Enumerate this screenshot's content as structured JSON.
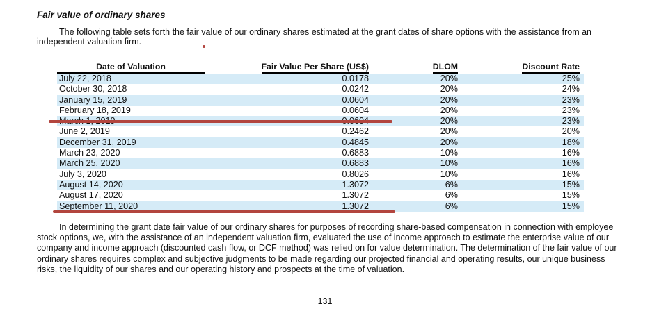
{
  "document": {
    "title": "Fair value of ordinary shares",
    "intro": "The following table sets forth the fair value of our ordinary shares estimated at the grant dates of share options with the assistance from an independent valuation firm.",
    "body": "In determining the grant date fair value of our ordinary shares for purposes of recording share-based compensation in connection with employee stock options, we, with the assistance of an independent valuation firm, evaluated the use of income approach to estimate the enterprise value of our company and income approach (discounted cash flow, or DCF method) was relied on for value determination. The determination of the fair value of our ordinary shares requires complex and subjective judgments to be made regarding our projected financial and operating results, our unique business risks, the liquidity of our shares and our operating history and prospects at the time of valuation.",
    "page_number": "131"
  },
  "table": {
    "columns": [
      "Date of Valuation",
      "Fair Value Per Share (US$)",
      "DLOM",
      "Discount Rate"
    ],
    "rows": [
      {
        "date": "July 22, 2018",
        "fair_value": "0.0178",
        "dlom": "20%",
        "discount_rate": "25%"
      },
      {
        "date": "October 30, 2018",
        "fair_value": "0.0242",
        "dlom": "20%",
        "discount_rate": "24%"
      },
      {
        "date": "January 15, 2019",
        "fair_value": "0.0604",
        "dlom": "20%",
        "discount_rate": "23%"
      },
      {
        "date": "February 18, 2019",
        "fair_value": "0.0604",
        "dlom": "20%",
        "discount_rate": "23%"
      },
      {
        "date": "March 1, 2019",
        "fair_value": "0.0604",
        "dlom": "20%",
        "discount_rate": "23%"
      },
      {
        "date": "June 2, 2019",
        "fair_value": "0.2462",
        "dlom": "20%",
        "discount_rate": "20%"
      },
      {
        "date": "December 31, 2019",
        "fair_value": "0.4845",
        "dlom": "20%",
        "discount_rate": "18%"
      },
      {
        "date": "March 23, 2020",
        "fair_value": "0.6883",
        "dlom": "10%",
        "discount_rate": "16%"
      },
      {
        "date": "March 25, 2020",
        "fair_value": "0.6883",
        "dlom": "10%",
        "discount_rate": "16%"
      },
      {
        "date": "July 3, 2020",
        "fair_value": "0.8026",
        "dlom": "10%",
        "discount_rate": "16%"
      },
      {
        "date": "August 14, 2020",
        "fair_value": "1.3072",
        "dlom": "6%",
        "discount_rate": "15%"
      },
      {
        "date": "August 17, 2020",
        "fair_value": "1.3072",
        "dlom": "6%",
        "discount_rate": "15%"
      },
      {
        "date": "September 11, 2020",
        "fair_value": "1.3072",
        "dlom": "6%",
        "discount_rate": "15%"
      }
    ]
  },
  "annotations": {
    "underline_1_target": "March 1, 2019 row",
    "underline_2_target": "September 11, 2020 row",
    "dot_location": "after intro paragraph"
  },
  "colors": {
    "row_stripe": "#d5ebf7",
    "annotation_red": "#b2453e",
    "text": "#111111"
  }
}
